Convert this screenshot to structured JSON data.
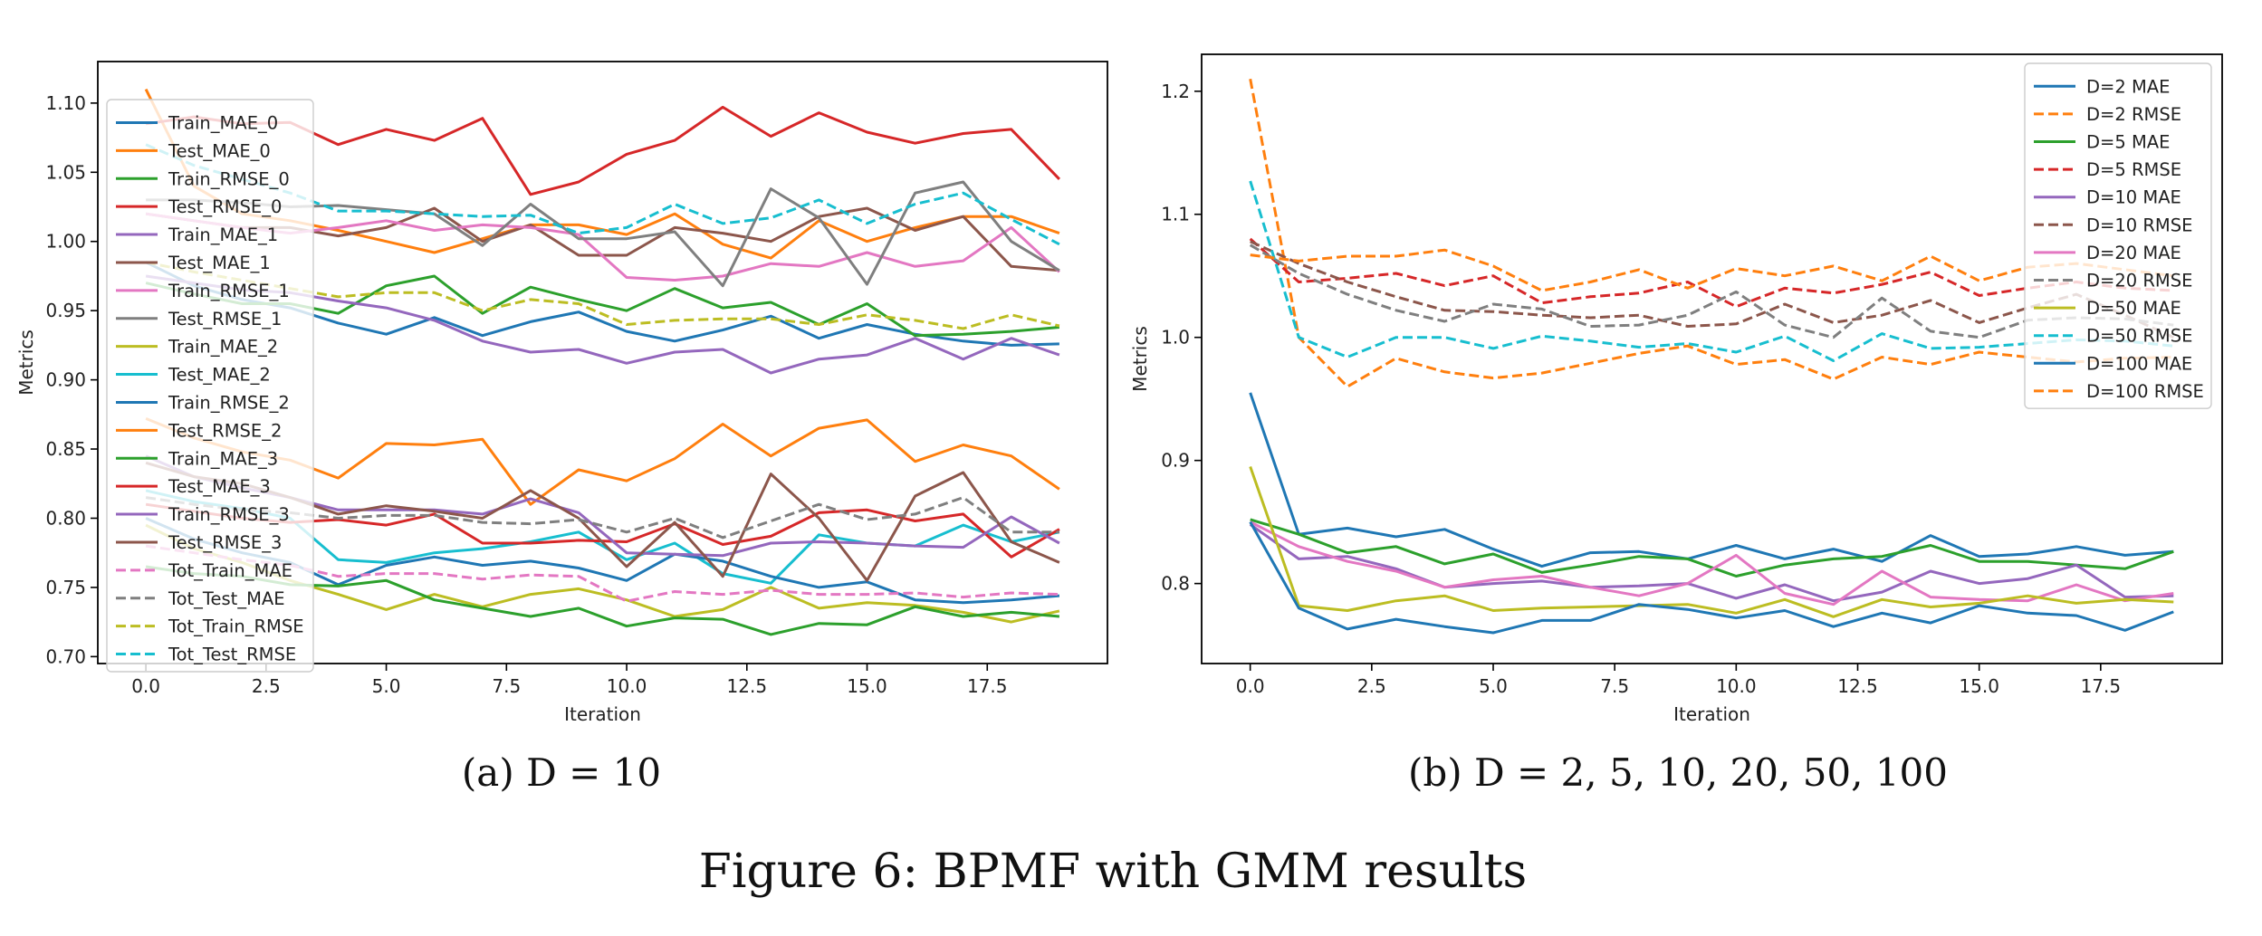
{
  "figure": {
    "caption": "Figure 6: BPMF with GMM results",
    "subcaption_a": "(a) D = 10",
    "subcaption_b": "(b) D = 2, 5, 10, 20, 50, 100"
  },
  "chart_data": [
    {
      "type": "line",
      "xlabel": "Iteration",
      "ylabel": "Metrics",
      "xlim": [
        -1,
        20
      ],
      "ylim": [
        0.695,
        1.13
      ],
      "xticks": [
        0,
        2.5,
        5,
        7.5,
        10,
        12.5,
        15,
        17.5
      ],
      "xtick_labels": [
        "0.0",
        "2.5",
        "5.0",
        "7.5",
        "10.0",
        "12.5",
        "15.0",
        "17.5"
      ],
      "yticks": [
        0.7,
        0.75,
        0.8,
        0.85,
        0.9,
        0.95,
        1.0,
        1.05,
        1.1
      ],
      "ytick_labels": [
        "0.70",
        "0.75",
        "0.80",
        "0.85",
        "0.90",
        "0.95",
        "1.00",
        "1.05",
        "1.10"
      ],
      "grid": false,
      "legend_position": "upper-left",
      "x": [
        0,
        1,
        2,
        3,
        4,
        5,
        6,
        7,
        8,
        9,
        10,
        11,
        12,
        13,
        14,
        15,
        16,
        17,
        18,
        19
      ],
      "series": [
        {
          "name": "Train_MAE_0",
          "color": "#1f77b4",
          "dash": "solid",
          "values": [
            0.985,
            0.968,
            0.958,
            0.952,
            0.941,
            0.933,
            0.945,
            0.932,
            0.942,
            0.949,
            0.935,
            0.928,
            0.936,
            0.946,
            0.93,
            0.94,
            0.933,
            0.928,
            0.925,
            0.926
          ]
        },
        {
          "name": "Test_MAE_0",
          "color": "#ff7f0e",
          "dash": "solid",
          "values": [
            1.11,
            1.04,
            1.02,
            1.015,
            1.008,
            1.0,
            0.992,
            1.002,
            1.012,
            1.012,
            1.005,
            1.02,
            0.998,
            0.988,
            1.015,
            1.0,
            1.01,
            1.018,
            1.018,
            1.006
          ]
        },
        {
          "name": "Train_RMSE_0",
          "color": "#2ca02c",
          "dash": "solid",
          "values": [
            0.97,
            0.962,
            0.955,
            0.955,
            0.948,
            0.968,
            0.975,
            0.948,
            0.967,
            0.958,
            0.95,
            0.966,
            0.952,
            0.956,
            0.94,
            0.955,
            0.932,
            0.933,
            0.935,
            0.938
          ]
        },
        {
          "name": "Test_RMSE_0",
          "color": "#d62728",
          "dash": "solid",
          "values": [
            1.085,
            1.09,
            1.085,
            1.086,
            1.07,
            1.081,
            1.073,
            1.089,
            1.034,
            1.043,
            1.063,
            1.073,
            1.097,
            1.076,
            1.093,
            1.079,
            1.071,
            1.078,
            1.081,
            1.045
          ]
        },
        {
          "name": "Train_MAE_1",
          "color": "#9467bd",
          "dash": "solid",
          "values": [
            0.975,
            0.97,
            0.965,
            0.963,
            0.957,
            0.952,
            0.943,
            0.928,
            0.92,
            0.922,
            0.912,
            0.92,
            0.922,
            0.905,
            0.915,
            0.918,
            0.93,
            0.915,
            0.93,
            0.918
          ]
        },
        {
          "name": "Test_MAE_1",
          "color": "#8c564b",
          "dash": "solid",
          "values": [
            1.02,
            1.015,
            1.01,
            1.01,
            1.004,
            1.01,
            1.024,
            1.0,
            1.012,
            0.99,
            0.99,
            1.01,
            1.006,
            1.0,
            1.018,
            1.024,
            1.008,
            1.018,
            0.982,
            0.979
          ]
        },
        {
          "name": "Train_RMSE_1",
          "color": "#e377c2",
          "dash": "solid",
          "values": [
            1.02,
            1.015,
            1.01,
            1.006,
            1.01,
            1.015,
            1.008,
            1.012,
            1.01,
            1.005,
            0.974,
            0.972,
            0.975,
            0.984,
            0.982,
            0.992,
            0.982,
            0.986,
            1.01,
            0.978
          ]
        },
        {
          "name": "Test_RMSE_1",
          "color": "#7f7f7f",
          "dash": "solid",
          "values": [
            1.03,
            1.03,
            1.028,
            1.025,
            1.026,
            1.023,
            1.02,
            0.997,
            1.027,
            1.002,
            1.002,
            1.007,
            0.968,
            1.038,
            1.017,
            0.969,
            1.035,
            1.043,
            1.0,
            0.979
          ]
        },
        {
          "name": "Train_MAE_2",
          "color": "#bcbd22",
          "dash": "solid",
          "values": [
            0.795,
            0.778,
            0.768,
            0.755,
            0.745,
            0.734,
            0.745,
            0.736,
            0.745,
            0.749,
            0.741,
            0.729,
            0.734,
            0.75,
            0.735,
            0.739,
            0.737,
            0.732,
            0.725,
            0.733
          ]
        },
        {
          "name": "Test_MAE_2",
          "color": "#17becf",
          "dash": "solid",
          "values": [
            0.82,
            0.812,
            0.807,
            0.8,
            0.77,
            0.768,
            0.775,
            0.778,
            0.783,
            0.79,
            0.77,
            0.782,
            0.76,
            0.753,
            0.788,
            0.782,
            0.78,
            0.795,
            0.783,
            0.79
          ]
        },
        {
          "name": "Train_RMSE_2",
          "color": "#1f77b4",
          "dash": "solid",
          "values": [
            0.8,
            0.785,
            0.775,
            0.768,
            0.752,
            0.766,
            0.772,
            0.766,
            0.769,
            0.764,
            0.755,
            0.774,
            0.769,
            0.758,
            0.75,
            0.754,
            0.741,
            0.739,
            0.741,
            0.744
          ]
        },
        {
          "name": "Test_RMSE_2",
          "color": "#ff7f0e",
          "dash": "solid",
          "values": [
            0.872,
            0.858,
            0.848,
            0.842,
            0.829,
            0.854,
            0.853,
            0.857,
            0.81,
            0.835,
            0.827,
            0.843,
            0.868,
            0.845,
            0.865,
            0.871,
            0.841,
            0.853,
            0.845,
            0.821
          ]
        },
        {
          "name": "Train_MAE_3",
          "color": "#2ca02c",
          "dash": "solid",
          "values": [
            0.765,
            0.76,
            0.758,
            0.752,
            0.751,
            0.755,
            0.741,
            0.735,
            0.729,
            0.735,
            0.722,
            0.728,
            0.727,
            0.716,
            0.724,
            0.723,
            0.736,
            0.729,
            0.732,
            0.729
          ]
        },
        {
          "name": "Test_MAE_3",
          "color": "#d62728",
          "dash": "solid",
          "values": [
            0.81,
            0.805,
            0.8,
            0.797,
            0.799,
            0.795,
            0.803,
            0.782,
            0.782,
            0.784,
            0.783,
            0.796,
            0.781,
            0.787,
            0.804,
            0.806,
            0.798,
            0.803,
            0.772,
            0.792
          ]
        },
        {
          "name": "Train_RMSE_3",
          "color": "#9467bd",
          "dash": "solid",
          "values": [
            0.845,
            0.83,
            0.822,
            0.815,
            0.806,
            0.806,
            0.806,
            0.803,
            0.814,
            0.804,
            0.775,
            0.774,
            0.773,
            0.782,
            0.783,
            0.782,
            0.78,
            0.779,
            0.801,
            0.782
          ]
        },
        {
          "name": "Test_RMSE_3",
          "color": "#8c564b",
          "dash": "solid",
          "values": [
            0.84,
            0.83,
            0.825,
            0.815,
            0.803,
            0.809,
            0.805,
            0.8,
            0.82,
            0.8,
            0.765,
            0.797,
            0.758,
            0.832,
            0.8,
            0.755,
            0.816,
            0.833,
            0.783,
            0.768
          ]
        },
        {
          "name": "Tot_Train_MAE",
          "color": "#e377c2",
          "dash": "dashed",
          "values": [
            0.78,
            0.775,
            0.77,
            0.766,
            0.758,
            0.76,
            0.76,
            0.756,
            0.759,
            0.758,
            0.74,
            0.747,
            0.745,
            0.748,
            0.745,
            0.745,
            0.746,
            0.743,
            0.746,
            0.745
          ]
        },
        {
          "name": "Tot_Test_MAE",
          "color": "#7f7f7f",
          "dash": "dashed",
          "values": [
            0.815,
            0.81,
            0.806,
            0.804,
            0.8,
            0.802,
            0.802,
            0.797,
            0.796,
            0.799,
            0.79,
            0.8,
            0.786,
            0.798,
            0.81,
            0.799,
            0.803,
            0.815,
            0.79,
            0.79
          ]
        },
        {
          "name": "Tot_Train_RMSE",
          "color": "#bcbd22",
          "dash": "dashed",
          "values": [
            0.985,
            0.978,
            0.972,
            0.966,
            0.96,
            0.963,
            0.963,
            0.95,
            0.958,
            0.955,
            0.94,
            0.943,
            0.944,
            0.944,
            0.94,
            0.947,
            0.943,
            0.937,
            0.947,
            0.939
          ]
        },
        {
          "name": "Tot_Test_RMSE",
          "color": "#17becf",
          "dash": "dashed",
          "values": [
            1.07,
            1.055,
            1.045,
            1.035,
            1.022,
            1.022,
            1.02,
            1.018,
            1.019,
            1.006,
            1.01,
            1.027,
            1.013,
            1.017,
            1.03,
            1.013,
            1.027,
            1.035,
            1.016,
            0.998
          ]
        }
      ]
    },
    {
      "type": "line",
      "xlabel": "Iteration",
      "ylabel": "Metrics",
      "xlim": [
        -1,
        20
      ],
      "ylim": [
        0.735,
        1.23
      ],
      "xticks": [
        0,
        2.5,
        5,
        7.5,
        10,
        12.5,
        15,
        17.5
      ],
      "xtick_labels": [
        "0.0",
        "2.5",
        "5.0",
        "7.5",
        "10.0",
        "12.5",
        "15.0",
        "17.5"
      ],
      "yticks": [
        0.8,
        0.9,
        1.0,
        1.1,
        1.2
      ],
      "ytick_labels": [
        "0.8",
        "0.9",
        "1.0",
        "1.1",
        "1.2"
      ],
      "grid": false,
      "legend_position": "upper-right",
      "x": [
        0,
        1,
        2,
        3,
        4,
        5,
        6,
        7,
        8,
        9,
        10,
        11,
        12,
        13,
        14,
        15,
        16,
        17,
        18,
        19
      ],
      "series": [
        {
          "name": "D=2 MAE",
          "color": "#1f77b4",
          "dash": "solid",
          "values": [
            0.955,
            0.84,
            0.845,
            0.838,
            0.844,
            0.828,
            0.814,
            0.825,
            0.826,
            0.82,
            0.831,
            0.82,
            0.828,
            0.818,
            0.839,
            0.822,
            0.824,
            0.83,
            0.823,
            0.826
          ]
        },
        {
          "name": "D=2 RMSE",
          "color": "#ff7f0e",
          "dash": "dashed",
          "values": [
            1.21,
            1.0,
            0.96,
            0.983,
            0.972,
            0.967,
            0.971,
            0.979,
            0.987,
            0.993,
            0.978,
            0.982,
            0.966,
            0.984,
            0.978,
            0.988,
            0.984,
            0.98,
            0.983,
            0.984
          ]
        },
        {
          "name": "D=5 MAE",
          "color": "#2ca02c",
          "dash": "solid",
          "values": [
            0.852,
            0.84,
            0.825,
            0.83,
            0.816,
            0.824,
            0.809,
            0.815,
            0.822,
            0.82,
            0.806,
            0.815,
            0.82,
            0.822,
            0.831,
            0.818,
            0.818,
            0.815,
            0.812,
            0.826
          ]
        },
        {
          "name": "D=5 RMSE",
          "color": "#d62728",
          "dash": "dashed",
          "values": [
            1.08,
            1.045,
            1.048,
            1.052,
            1.042,
            1.05,
            1.028,
            1.033,
            1.036,
            1.045,
            1.025,
            1.04,
            1.036,
            1.043,
            1.053,
            1.034,
            1.04,
            1.045,
            1.04,
            1.038
          ]
        },
        {
          "name": "D=10 MAE",
          "color": "#9467bd",
          "dash": "solid",
          "values": [
            0.848,
            0.82,
            0.822,
            0.812,
            0.797,
            0.8,
            0.802,
            0.797,
            0.798,
            0.8,
            0.788,
            0.799,
            0.786,
            0.793,
            0.81,
            0.8,
            0.804,
            0.815,
            0.789,
            0.79
          ]
        },
        {
          "name": "D=10 RMSE",
          "color": "#8c564b",
          "dash": "dashed",
          "values": [
            1.078,
            1.06,
            1.045,
            1.033,
            1.022,
            1.021,
            1.018,
            1.016,
            1.018,
            1.009,
            1.011,
            1.027,
            1.012,
            1.018,
            1.03,
            1.012,
            1.024,
            1.035,
            1.018,
            1.0
          ]
        },
        {
          "name": "D=20 MAE",
          "color": "#e377c2",
          "dash": "solid",
          "values": [
            0.85,
            0.83,
            0.818,
            0.81,
            0.797,
            0.803,
            0.806,
            0.797,
            0.79,
            0.8,
            0.823,
            0.792,
            0.783,
            0.81,
            0.789,
            0.787,
            0.786,
            0.799,
            0.786,
            0.792
          ]
        },
        {
          "name": "D=20 RMSE",
          "color": "#7f7f7f",
          "dash": "dashed",
          "values": [
            1.075,
            1.052,
            1.035,
            1.022,
            1.013,
            1.027,
            1.023,
            1.009,
            1.01,
            1.018,
            1.037,
            1.01,
            1.0,
            1.032,
            1.005,
            1.0,
            1.014,
            1.016,
            1.015,
            1.01
          ]
        },
        {
          "name": "D=50 MAE",
          "color": "#bcbd22",
          "dash": "solid",
          "values": [
            0.895,
            0.782,
            0.778,
            0.786,
            0.79,
            0.778,
            0.78,
            0.781,
            0.782,
            0.783,
            0.776,
            0.787,
            0.773,
            0.787,
            0.781,
            0.784,
            0.79,
            0.784,
            0.787,
            0.785
          ]
        },
        {
          "name": "D=50 RMSE",
          "color": "#17becf",
          "dash": "dashed",
          "values": [
            1.127,
            1.0,
            0.984,
            1.0,
            1.0,
            0.991,
            1.001,
            0.997,
            0.992,
            0.995,
            0.988,
            1.001,
            0.981,
            1.003,
            0.991,
            0.992,
            0.995,
            0.998,
            0.997,
            0.993
          ]
        },
        {
          "name": "D=100 MAE",
          "color": "#1f77b4",
          "dash": "solid",
          "values": [
            0.85,
            0.78,
            0.763,
            0.771,
            0.765,
            0.76,
            0.77,
            0.77,
            0.783,
            0.779,
            0.772,
            0.778,
            0.765,
            0.776,
            0.768,
            0.782,
            0.776,
            0.774,
            0.762,
            0.777
          ]
        },
        {
          "name": "D=100 RMSE",
          "color": "#ff7f0e",
          "dash": "dashed",
          "values": [
            1.067,
            1.062,
            1.066,
            1.066,
            1.071,
            1.058,
            1.038,
            1.045,
            1.055,
            1.04,
            1.056,
            1.05,
            1.058,
            1.046,
            1.066,
            1.046,
            1.057,
            1.06,
            1.055,
            1.05
          ]
        }
      ]
    }
  ]
}
